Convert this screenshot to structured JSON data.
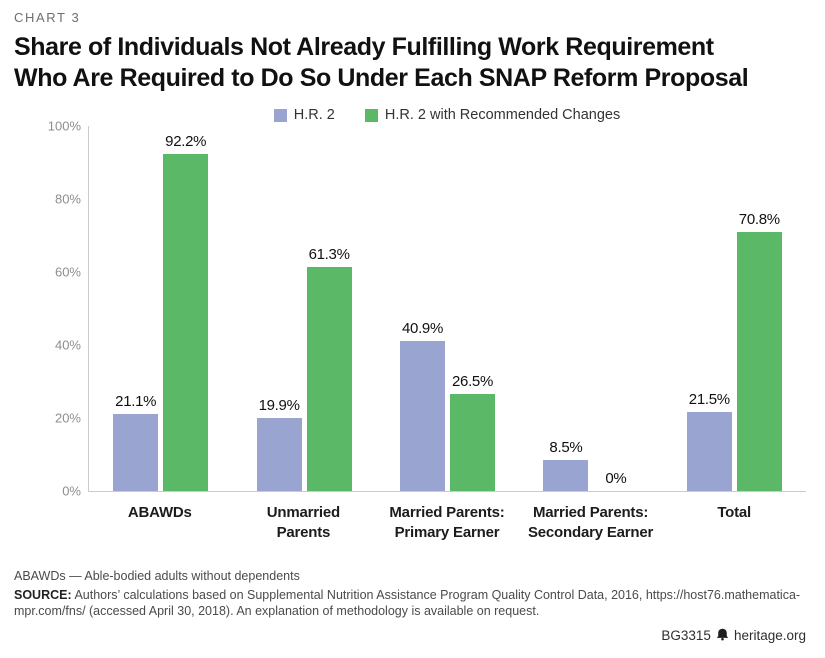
{
  "header": {
    "kicker": "CHART 3",
    "title_line1": "Share of Individuals Not Already Fulfilling Work Requirement",
    "title_line2": "Who Are Required to Do So Under Each SNAP Reform Proposal"
  },
  "chart_data": {
    "type": "bar",
    "title": "Share of Individuals Not Already Fulfilling Work Requirement Who Are Required to Do So Under Each SNAP Reform Proposal",
    "categories": [
      "ABAWDs",
      "Unmarried\nParents",
      "Married Parents:\nPrimary Earner",
      "Married Parents:\nSecondary Earner",
      "Total"
    ],
    "series": [
      {
        "name": "H.R. 2",
        "color": "#99a4d0",
        "values": [
          21.1,
          19.9,
          40.9,
          8.5,
          21.5
        ]
      },
      {
        "name": "H.R. 2 with Recommended Changes",
        "color": "#5bb867",
        "values": [
          92.2,
          61.3,
          26.5,
          0,
          70.8
        ]
      }
    ],
    "value_labels": [
      [
        "21.1%",
        "92.2%"
      ],
      [
        "19.9%",
        "61.3%"
      ],
      [
        "40.9%",
        "26.5%"
      ],
      [
        "8.5%",
        "0%"
      ],
      [
        "21.5%",
        "70.8%"
      ]
    ],
    "ylim": [
      0,
      100
    ],
    "yticks": [
      "0%",
      "20%",
      "40%",
      "60%",
      "80%",
      "100%"
    ],
    "grid": false,
    "legend_position": "top-center",
    "axis_color": "#cbcbcb"
  },
  "footer": {
    "note": "ABAWDs — Able-bodied adults without dependents",
    "source_label": "SOURCE:",
    "source_text": "Authors’ calculations based on Supplemental Nutrition Assistance Program Quality Control Data, 2016, https://host76.mathematica-mpr.com/fns/ (accessed April 30, 2018). An explanation of methodology is available on request.",
    "credit_id": "BG3315",
    "credit_site": "heritage.org"
  }
}
